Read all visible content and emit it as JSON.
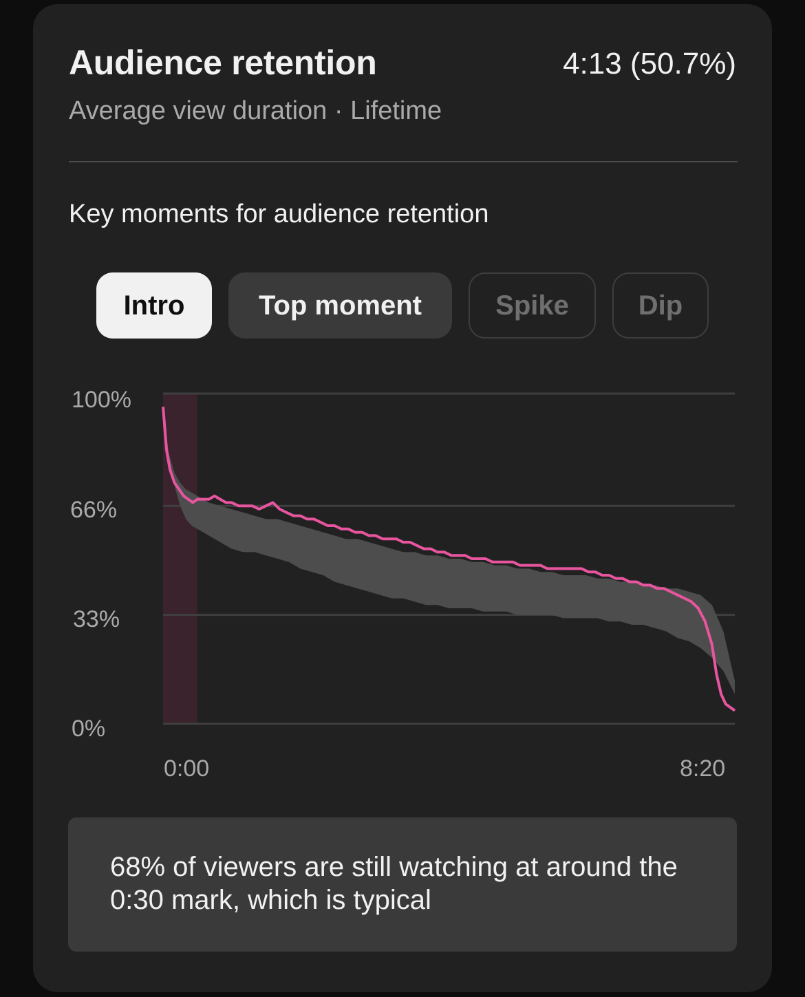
{
  "header": {
    "title": "Audience retention",
    "metric": "4:13 (50.7%)",
    "subtitle": "Average view duration · Lifetime"
  },
  "key_moments": {
    "label": "Key moments for audience retention",
    "chips": [
      {
        "label": "Intro",
        "state": "selected"
      },
      {
        "label": "Top moment",
        "state": "enabled"
      },
      {
        "label": "Spike",
        "state": "disabled"
      },
      {
        "label": "Dip",
        "state": "disabled"
      }
    ]
  },
  "colors": {
    "line": "#e8559f",
    "band": "#4d4d4d",
    "highlight": "#3a232c"
  },
  "chart_data": {
    "type": "line",
    "xlabel": "",
    "ylabel": "",
    "y_ticks": [
      "100%",
      "66%",
      "33%",
      "0%"
    ],
    "x_ticks": [
      "0:00",
      "8:20"
    ],
    "y_tick_values": [
      100,
      66,
      33,
      0
    ],
    "xlim_seconds": [
      0,
      500
    ],
    "ylim": [
      0,
      100
    ],
    "highlight_range_seconds": [
      0,
      30
    ],
    "series": [
      {
        "x_seconds": [
          0,
          3,
          6,
          10,
          14,
          18,
          22,
          26,
          30,
          35,
          40,
          45,
          50,
          55,
          60,
          66,
          72,
          78,
          84,
          90,
          96,
          102,
          108,
          114,
          120,
          126,
          132,
          138,
          144,
          150,
          156,
          162,
          168,
          174,
          180,
          186,
          192,
          198,
          204,
          210,
          216,
          222,
          228,
          234,
          240,
          246,
          252,
          258,
          264,
          270,
          276,
          282,
          288,
          294,
          300,
          306,
          312,
          318,
          324,
          330,
          336,
          342,
          348,
          354,
          360,
          366,
          372,
          378,
          384,
          390,
          396,
          402,
          408,
          414,
          420,
          426,
          432,
          438,
          444,
          450,
          456,
          462,
          468,
          474,
          480,
          484,
          488,
          492,
          496,
          500
        ],
        "values": [
          96,
          83,
          77,
          73,
          71,
          69,
          68,
          67,
          68,
          68,
          68,
          69,
          68,
          67,
          67,
          66,
          66,
          66,
          65,
          66,
          67,
          65,
          64,
          63,
          63,
          62,
          62,
          61,
          60,
          60,
          59,
          59,
          58,
          58,
          57,
          57,
          56,
          56,
          56,
          55,
          55,
          54,
          53,
          53,
          52,
          52,
          51,
          51,
          51,
          50,
          50,
          50,
          49,
          49,
          49,
          49,
          48,
          48,
          48,
          48,
          47,
          47,
          47,
          47,
          47,
          47,
          46,
          46,
          45,
          45,
          44,
          44,
          43,
          43,
          42,
          42,
          41,
          41,
          40,
          39,
          38,
          37,
          35,
          31,
          24,
          15,
          9,
          6,
          5,
          4
        ]
      }
    ],
    "typical_band": {
      "x_seconds": [
        0,
        5,
        10,
        15,
        20,
        25,
        30,
        40,
        50,
        60,
        70,
        80,
        90,
        100,
        110,
        120,
        130,
        140,
        150,
        160,
        170,
        180,
        190,
        200,
        210,
        220,
        230,
        240,
        250,
        260,
        270,
        280,
        290,
        300,
        310,
        320,
        330,
        340,
        350,
        360,
        370,
        380,
        390,
        400,
        410,
        420,
        430,
        440,
        450,
        460,
        470,
        480,
        490,
        500
      ],
      "upper": [
        96,
        82,
        76,
        73,
        71,
        70,
        69,
        67,
        66,
        65,
        64,
        63,
        62,
        62,
        61,
        60,
        59,
        58,
        57,
        56,
        56,
        55,
        54,
        53,
        52,
        52,
        51,
        51,
        50,
        50,
        49,
        49,
        48,
        48,
        47,
        47,
        46,
        46,
        45,
        45,
        45,
        44,
        44,
        43,
        43,
        42,
        42,
        41,
        41,
        40,
        39,
        36,
        28,
        13
      ],
      "lower": [
        96,
        80,
        72,
        66,
        62,
        60,
        59,
        57,
        55,
        53,
        52,
        52,
        51,
        50,
        49,
        47,
        46,
        45,
        43,
        42,
        41,
        40,
        39,
        38,
        38,
        37,
        36,
        36,
        35,
        35,
        35,
        34,
        34,
        34,
        33,
        33,
        33,
        33,
        32,
        32,
        32,
        32,
        31,
        31,
        30,
        30,
        29,
        28,
        26,
        25,
        23,
        20,
        16,
        9
      ]
    }
  },
  "insight": {
    "text": "68% of viewers are still watching at around the 0:30 mark, which is typical"
  }
}
